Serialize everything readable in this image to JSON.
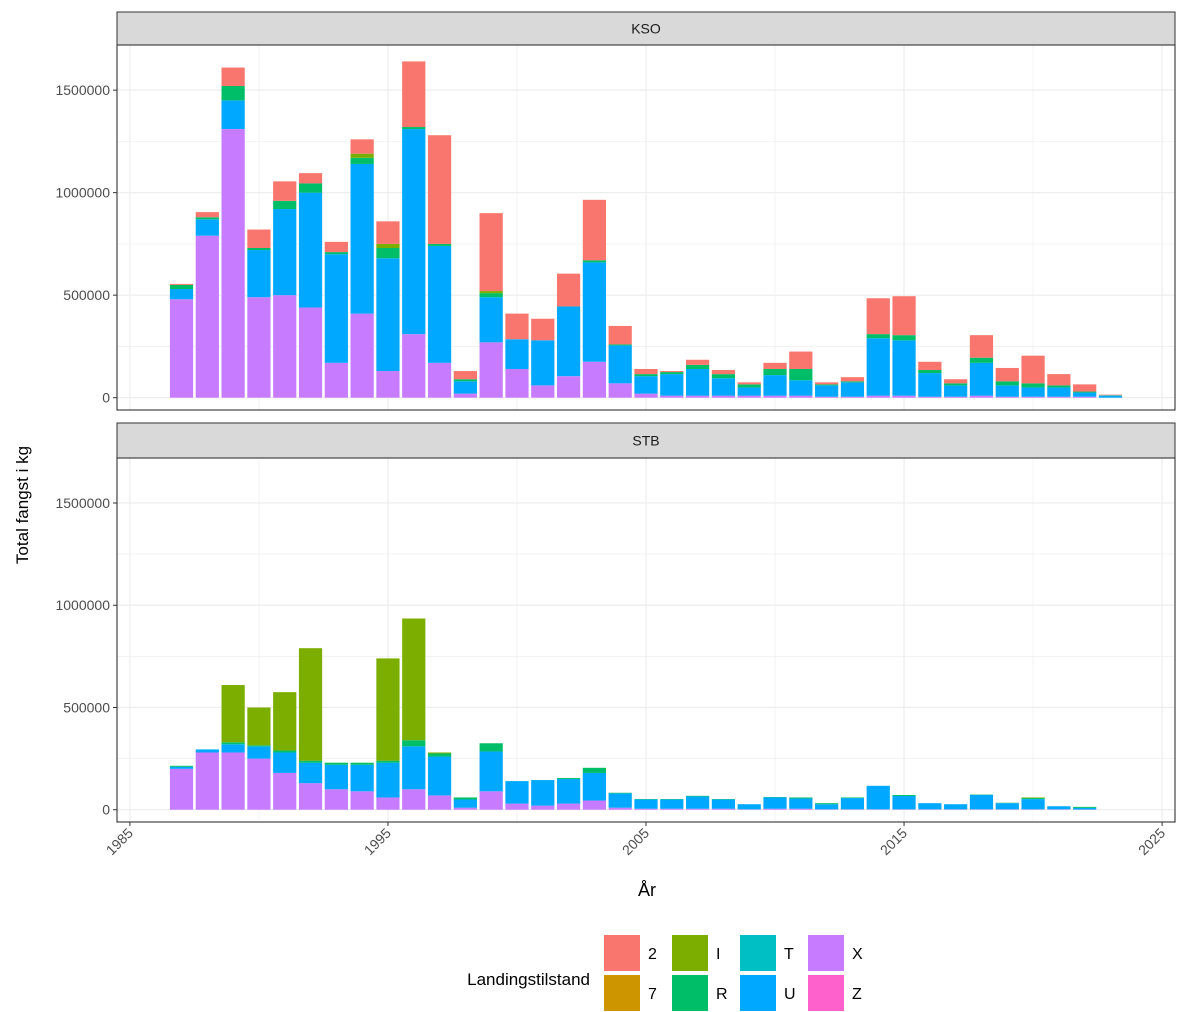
{
  "chart_data": {
    "type": "bar",
    "stacked": true,
    "xlabel": "År",
    "ylabel": "Total fangst i kg",
    "xlim": [
      1984.5,
      2025.5
    ],
    "ylim": [
      -60000,
      1720000
    ],
    "x_ticks": [
      1985,
      1995,
      2005,
      2015,
      2025
    ],
    "x_tick_labels": [
      "1985",
      "1995",
      "2005",
      "2015",
      "2025"
    ],
    "y_ticks": [
      0,
      500000,
      1000000,
      1500000
    ],
    "y_tick_labels": [
      "0",
      "500000",
      "1000000",
      "1500000"
    ],
    "grid": true,
    "legend": {
      "title": "Landingstilstand",
      "position": "bottom",
      "entries": [
        {
          "key": "2",
          "label": "2",
          "color": "#F8766D"
        },
        {
          "key": "7",
          "label": "7",
          "color": "#CD9600"
        },
        {
          "key": "I",
          "label": "I",
          "color": "#7CAE00"
        },
        {
          "key": "R",
          "label": "R",
          "color": "#00BE67"
        },
        {
          "key": "T",
          "label": "T",
          "color": "#00BFC4"
        },
        {
          "key": "U",
          "label": "U",
          "color": "#00A9FF"
        },
        {
          "key": "X",
          "label": "X",
          "color": "#C77CFF"
        },
        {
          "key": "Z",
          "label": "Z",
          "color": "#FF61CC"
        }
      ]
    },
    "stack_order_bottom_to_top": [
      "X",
      "U",
      "T",
      "R",
      "I",
      "7",
      "2",
      "Z"
    ],
    "panels": [
      {
        "title": "KSO",
        "bars": [
          {
            "year": 1987,
            "X": 480000,
            "U": 50000,
            "R": 20000,
            "2": 5000
          },
          {
            "year": 1988,
            "X": 790000,
            "U": 80000,
            "R": 10000,
            "2": 25000
          },
          {
            "year": 1989,
            "X": 1310000,
            "U": 140000,
            "R": 70000,
            "2": 90000
          },
          {
            "year": 1990,
            "X": 490000,
            "U": 230000,
            "R": 10000,
            "2": 90000
          },
          {
            "year": 1991,
            "X": 500000,
            "U": 420000,
            "R": 40000,
            "2": 95000
          },
          {
            "year": 1992,
            "X": 440000,
            "U": 560000,
            "R": 45000,
            "2": 50000
          },
          {
            "year": 1993,
            "X": 170000,
            "U": 530000,
            "R": 10000,
            "2": 50000
          },
          {
            "year": 1994,
            "X": 410000,
            "U": 730000,
            "R": 30000,
            "I": 20000,
            "2": 70000
          },
          {
            "year": 1995,
            "X": 130000,
            "U": 550000,
            "R": 50000,
            "I": 20000,
            "2": 110000
          },
          {
            "year": 1996,
            "X": 310000,
            "U": 1000000,
            "R": 10000,
            "2": 320000
          },
          {
            "year": 1997,
            "X": 170000,
            "U": 570000,
            "R": 10000,
            "2": 530000
          },
          {
            "year": 1998,
            "X": 20000,
            "U": 60000,
            "R": 10000,
            "2": 40000
          },
          {
            "year": 1999,
            "X": 270000,
            "U": 220000,
            "R": 20000,
            "I": 10000,
            "2": 380000
          },
          {
            "year": 2000,
            "X": 140000,
            "U": 145000,
            "2": 125000
          },
          {
            "year": 2001,
            "X": 60000,
            "U": 220000,
            "2": 105000
          },
          {
            "year": 2002,
            "X": 105000,
            "U": 340000,
            "2": 160000
          },
          {
            "year": 2003,
            "X": 175000,
            "U": 485000,
            "R": 10000,
            "2": 295000
          },
          {
            "year": 2004,
            "X": 70000,
            "U": 185000,
            "R": 5000,
            "2": 90000
          },
          {
            "year": 2005,
            "X": 20000,
            "U": 85000,
            "R": 10000,
            "2": 25000
          },
          {
            "year": 2006,
            "X": 10000,
            "U": 105000,
            "R": 10000,
            "2": 5000
          },
          {
            "year": 2007,
            "X": 10000,
            "U": 130000,
            "R": 20000,
            "2": 25000
          },
          {
            "year": 2008,
            "X": 10000,
            "U": 85000,
            "R": 20000,
            "2": 20000
          },
          {
            "year": 2009,
            "X": 10000,
            "U": 40000,
            "R": 15000,
            "2": 10000
          },
          {
            "year": 2010,
            "X": 10000,
            "U": 100000,
            "R": 30000,
            "2": 30000
          },
          {
            "year": 2011,
            "X": 10000,
            "U": 75000,
            "R": 55000,
            "2": 85000
          },
          {
            "year": 2012,
            "X": 5000,
            "U": 55000,
            "R": 5000,
            "2": 10000
          },
          {
            "year": 2013,
            "X": 5000,
            "U": 70000,
            "R": 5000,
            "2": 20000
          },
          {
            "year": 2014,
            "X": 10000,
            "U": 280000,
            "R": 20000,
            "2": 175000
          },
          {
            "year": 2015,
            "X": 10000,
            "U": 270000,
            "R": 25000,
            "2": 190000
          },
          {
            "year": 2016,
            "X": 5000,
            "U": 115000,
            "R": 15000,
            "2": 40000
          },
          {
            "year": 2017,
            "X": 5000,
            "U": 55000,
            "R": 10000,
            "2": 20000
          },
          {
            "year": 2018,
            "X": 10000,
            "U": 160000,
            "R": 25000,
            "2": 110000
          },
          {
            "year": 2019,
            "X": 5000,
            "U": 55000,
            "R": 20000,
            "2": 65000
          },
          {
            "year": 2020,
            "X": 5000,
            "U": 45000,
            "R": 20000,
            "2": 135000
          },
          {
            "year": 2021,
            "X": 5000,
            "U": 45000,
            "R": 10000,
            "2": 55000
          },
          {
            "year": 2022,
            "X": 5000,
            "U": 20000,
            "R": 5000,
            "2": 35000
          },
          {
            "year": 2023,
            "U": 10000,
            "R": 2000,
            "2": 3000
          }
        ]
      },
      {
        "title": "STB",
        "bars": [
          {
            "year": 1987,
            "X": 200000,
            "U": 10000,
            "R": 5000
          },
          {
            "year": 1988,
            "X": 280000,
            "U": 15000
          },
          {
            "year": 1989,
            "X": 280000,
            "U": 40000,
            "R": 10000,
            "I": 280000
          },
          {
            "year": 1990,
            "X": 250000,
            "U": 60000,
            "R": 5000,
            "I": 185000
          },
          {
            "year": 1991,
            "X": 180000,
            "U": 100000,
            "R": 10000,
            "I": 285000
          },
          {
            "year": 1992,
            "X": 130000,
            "U": 100000,
            "R": 10000,
            "I": 550000
          },
          {
            "year": 1993,
            "X": 100000,
            "U": 120000,
            "R": 10000
          },
          {
            "year": 1994,
            "X": 90000,
            "U": 130000,
            "R": 10000
          },
          {
            "year": 1995,
            "X": 60000,
            "U": 170000,
            "R": 10000,
            "I": 500000
          },
          {
            "year": 1996,
            "X": 100000,
            "U": 210000,
            "R": 30000,
            "I": 595000
          },
          {
            "year": 1997,
            "X": 70000,
            "U": 190000,
            "R": 15000,
            "I": 5000
          },
          {
            "year": 1998,
            "X": 10000,
            "U": 40000,
            "R": 10000
          },
          {
            "year": 1999,
            "X": 90000,
            "U": 195000,
            "R": 40000
          },
          {
            "year": 2000,
            "X": 30000,
            "U": 110000
          },
          {
            "year": 2001,
            "X": 20000,
            "U": 125000
          },
          {
            "year": 2002,
            "X": 30000,
            "U": 120000,
            "R": 5000
          },
          {
            "year": 2003,
            "X": 45000,
            "U": 135000,
            "R": 25000
          },
          {
            "year": 2004,
            "X": 10000,
            "U": 70000,
            "R": 3000
          },
          {
            "year": 2005,
            "X": 5000,
            "U": 45000,
            "R": 2000
          },
          {
            "year": 2006,
            "X": 5000,
            "U": 45000,
            "R": 2000
          },
          {
            "year": 2007,
            "X": 5000,
            "U": 60000,
            "R": 3000
          },
          {
            "year": 2008,
            "X": 5000,
            "U": 45000,
            "R": 2000
          },
          {
            "year": 2009,
            "X": 2000,
            "U": 25000
          },
          {
            "year": 2010,
            "X": 5000,
            "U": 55000,
            "R": 2000
          },
          {
            "year": 2011,
            "X": 5000,
            "U": 50000,
            "R": 5000
          },
          {
            "year": 2012,
            "X": 2000,
            "U": 25000,
            "R": 5000
          },
          {
            "year": 2013,
            "X": 2000,
            "U": 55000,
            "R": 3000
          },
          {
            "year": 2014,
            "X": 2000,
            "U": 115000
          },
          {
            "year": 2015,
            "X": 2000,
            "U": 65000,
            "R": 5000
          },
          {
            "year": 2016,
            "X": 2000,
            "U": 30000
          },
          {
            "year": 2017,
            "X": 2000,
            "U": 25000
          },
          {
            "year": 2018,
            "X": 2000,
            "U": 70000,
            "R": 2000
          },
          {
            "year": 2019,
            "X": 2000,
            "U": 30000,
            "R": 2000
          },
          {
            "year": 2020,
            "X": 2000,
            "U": 50000,
            "R": 5000,
            "I": 3000
          },
          {
            "year": 2021,
            "X": 2000,
            "U": 15000
          },
          {
            "year": 2022,
            "X": 1000,
            "U": 8000,
            "R": 5000
          }
        ]
      }
    ]
  }
}
